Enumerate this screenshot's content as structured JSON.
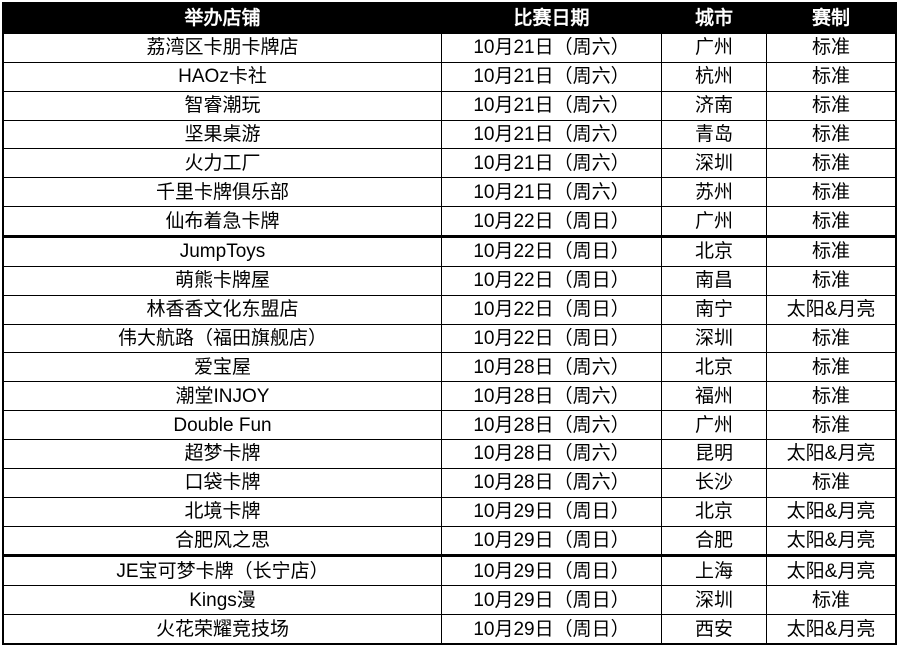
{
  "table": {
    "headers": [
      "举办店铺",
      "比赛日期",
      "城市",
      "赛制"
    ],
    "rows": [
      [
        "荔湾区卡朋卡牌店",
        "10月21日（周六）",
        "广州",
        "标准"
      ],
      [
        "HAOz卡社",
        "10月21日（周六）",
        "杭州",
        "标准"
      ],
      [
        "智睿潮玩",
        "10月21日（周六）",
        "济南",
        "标准"
      ],
      [
        "坚果桌游",
        "10月21日（周六）",
        "青岛",
        "标准"
      ],
      [
        "火力工厂",
        "10月21日（周六）",
        "深圳",
        "标准"
      ],
      [
        "千里卡牌俱乐部",
        "10月21日（周六）",
        "苏州",
        "标准"
      ],
      [
        "仙布着急卡牌",
        "10月22日（周日）",
        "广州",
        "标准"
      ],
      [
        "JumpToys",
        "10月22日（周日）",
        "北京",
        "标准"
      ],
      [
        "萌熊卡牌屋",
        "10月22日（周日）",
        "南昌",
        "标准"
      ],
      [
        "林香香文化东盟店",
        "10月22日（周日）",
        "南宁",
        "太阳&月亮"
      ],
      [
        "伟大航路（福田旗舰店）",
        "10月22日（周日）",
        "深圳",
        "标准"
      ],
      [
        "爱宝屋",
        "10月28日（周六）",
        "北京",
        "标准"
      ],
      [
        "潮堂INJOY",
        "10月28日（周六）",
        "福州",
        "标准"
      ],
      [
        "Double Fun",
        "10月28日（周六）",
        "广州",
        "标准"
      ],
      [
        "超梦卡牌",
        "10月28日（周六）",
        "昆明",
        "太阳&月亮"
      ],
      [
        "口袋卡牌",
        "10月28日（周六）",
        "长沙",
        "标准"
      ],
      [
        "北境卡牌",
        "10月29日（周日）",
        "北京",
        "太阳&月亮"
      ],
      [
        "合肥风之思",
        "10月29日（周日）",
        "合肥",
        "太阳&月亮"
      ],
      [
        "JE宝可梦卡牌（长宁店）",
        "10月29日（周日）",
        "上海",
        "太阳&月亮"
      ],
      [
        "Kings漫",
        "10月29日（周日）",
        "深圳",
        "标准"
      ],
      [
        "火花荣耀竞技场",
        "10月29日（周日）",
        "西安",
        "太阳&月亮"
      ]
    ],
    "thick_border_after_rows": [
      6,
      17
    ],
    "colors": {
      "header_bg": "#000000",
      "header_text": "#ffffff",
      "border": "#000000",
      "row_bg": "#ffffff",
      "body_text": "#000000"
    }
  },
  "chart_data": {
    "type": "table",
    "title": "",
    "columns": [
      "举办店铺",
      "比赛日期",
      "城市",
      "赛制"
    ],
    "rows": [
      [
        "荔湾区卡朋卡牌店",
        "10月21日（周六）",
        "广州",
        "标准"
      ],
      [
        "HAOz卡社",
        "10月21日（周六）",
        "杭州",
        "标准"
      ],
      [
        "智睿潮玩",
        "10月21日（周六）",
        "济南",
        "标准"
      ],
      [
        "坚果桌游",
        "10月21日（周六）",
        "青岛",
        "标准"
      ],
      [
        "火力工厂",
        "10月21日（周六）",
        "深圳",
        "标准"
      ],
      [
        "千里卡牌俱乐部",
        "10月21日（周六）",
        "苏州",
        "标准"
      ],
      [
        "仙布着急卡牌",
        "10月22日（周日）",
        "广州",
        "标准"
      ],
      [
        "JumpToys",
        "10月22日（周日）",
        "北京",
        "标准"
      ],
      [
        "萌熊卡牌屋",
        "10月22日（周日）",
        "南昌",
        "标准"
      ],
      [
        "林香香文化东盟店",
        "10月22日（周日）",
        "南宁",
        "太阳&月亮"
      ],
      [
        "伟大航路（福田旗舰店）",
        "10月22日（周日）",
        "深圳",
        "标准"
      ],
      [
        "爱宝屋",
        "10月28日（周六）",
        "北京",
        "标准"
      ],
      [
        "潮堂INJOY",
        "10月28日（周六）",
        "福州",
        "标准"
      ],
      [
        "Double Fun",
        "10月28日（周六）",
        "广州",
        "标准"
      ],
      [
        "超梦卡牌",
        "10月28日（周六）",
        "昆明",
        "太阳&月亮"
      ],
      [
        "口袋卡牌",
        "10月28日（周六）",
        "长沙",
        "标准"
      ],
      [
        "北境卡牌",
        "10月29日（周日）",
        "北京",
        "太阳&月亮"
      ],
      [
        "合肥风之思",
        "10月29日（周日）",
        "合肥",
        "太阳&月亮"
      ],
      [
        "JE宝可梦卡牌（长宁店）",
        "10月29日（周日）",
        "上海",
        "太阳&月亮"
      ],
      [
        "Kings漫",
        "10月29日（周日）",
        "深圳",
        "标准"
      ],
      [
        "火花荣耀竞技场",
        "10月29日（周日）",
        "西安",
        "太阳&月亮"
      ]
    ]
  }
}
